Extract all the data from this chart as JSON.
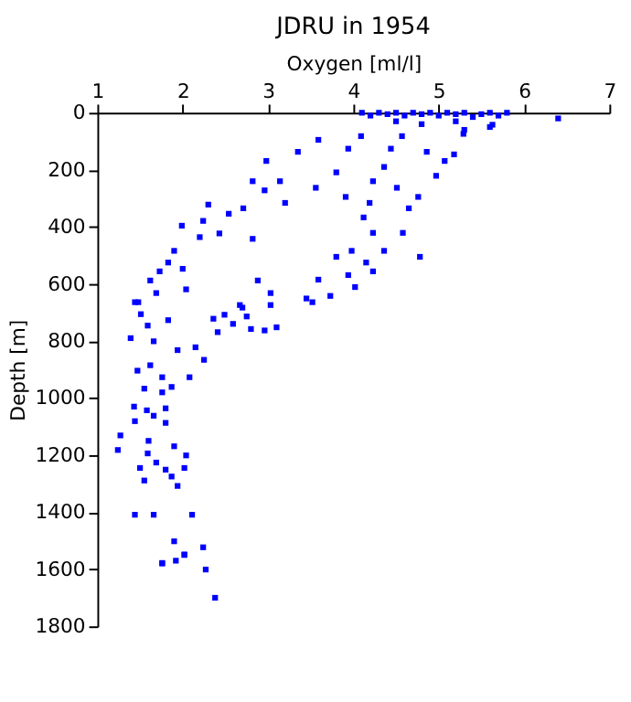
{
  "chart_data": {
    "type": "scatter",
    "title": "JDRU in 1954",
    "xlabel": "Oxygen [ml/l]",
    "ylabel": "Depth [m]",
    "xlim": [
      1,
      7
    ],
    "xticks": [
      1,
      2,
      3,
      4,
      5,
      6,
      7
    ],
    "ylim": [
      1800,
      0
    ],
    "yticks": [
      0,
      200,
      400,
      600,
      800,
      1000,
      1200,
      1400,
      1600,
      1800
    ],
    "grid": false,
    "marker": "square",
    "series": [
      {
        "color": "#0000ff",
        "x": [
          4.1,
          4.2,
          4.3,
          4.4,
          4.5,
          4.6,
          4.7,
          4.8,
          4.9,
          5.0,
          5.1,
          5.2,
          5.3,
          5.4,
          5.5,
          5.6,
          5.7,
          5.8,
          6.4,
          4.5,
          4.8,
          5.2,
          5.6,
          5.3,
          3.59,
          3.35,
          2.98,
          2.82,
          2.96,
          3.14,
          3.2,
          2.3,
          2.54,
          2.71,
          1.99,
          2.24,
          2.43,
          2.2,
          2.82,
          1.9,
          1.83,
          2.0,
          1.73,
          1.62,
          1.69,
          1.48,
          2.04,
          2.88,
          3.03,
          2.67,
          3.45,
          3.73,
          3.59,
          3.8,
          3.98,
          4.15,
          4.23,
          4.12,
          4.19,
          4.23,
          4.36,
          4.51,
          4.65,
          4.58,
          4.76,
          4.97,
          5.07,
          5.18,
          4.86,
          4.44,
          3.94,
          3.8,
          3.56,
          3.91,
          4.09,
          4.57,
          5.29,
          5.63,
          4.36,
          4.78,
          3.94,
          4.23,
          4.02,
          1.44,
          1.51,
          1.59,
          1.83,
          1.39,
          1.66,
          1.94,
          2.15,
          2.25,
          1.62,
          1.47,
          1.76,
          2.08,
          1.87,
          1.55,
          1.76,
          1.43,
          1.58,
          1.8,
          1.66,
          1.44,
          1.8,
          1.27,
          1.6,
          1.9,
          1.24,
          1.59,
          2.04,
          1.69,
          1.5,
          1.8,
          2.02,
          1.87,
          1.55,
          1.94,
          1.44,
          1.66,
          2.11,
          1.9,
          2.24,
          2.02,
          1.76,
          2.36,
          2.49,
          2.7,
          2.75,
          2.59,
          2.8,
          2.96,
          3.1,
          2.41,
          3.03,
          3.52,
          1.76,
          1.92,
          2.02,
          2.27,
          2.38
        ],
        "values": [
          0,
          10,
          0,
          5,
          0,
          10,
          0,
          5,
          0,
          10,
          0,
          5,
          0,
          15,
          5,
          0,
          10,
          0,
          20,
          30,
          40,
          30,
          50,
          60,
          95,
          137,
          169,
          240,
          272,
          240,
          316,
          322,
          354,
          335,
          396,
          379,
          423,
          436,
          442,
          484,
          525,
          547,
          556,
          588,
          632,
          664,
          619,
          588,
          632,
          674,
          651,
          642,
          585,
          505,
          484,
          525,
          421,
          367,
          316,
          240,
          190,
          263,
          335,
          421,
          295,
          221,
          169,
          146,
          137,
          126,
          126,
          209,
          263,
          295,
          82,
          82,
          74,
          42,
          484,
          505,
          569,
          556,
          611,
          664,
          706,
          746,
          727,
          790,
          801,
          832,
          822,
          866,
          885,
          904,
          927,
          927,
          961,
          967,
          980,
          1030,
          1043,
          1036,
          1062,
          1081,
          1087,
          1131,
          1150,
          1169,
          1182,
          1194,
          1201,
          1226,
          1245,
          1251,
          1245,
          1275,
          1289,
          1308,
          1409,
          1409,
          1409,
          1502,
          1523,
          1548,
          1578,
          722,
          708,
          683,
          714,
          740,
          758,
          763,
          752,
          769,
          674,
          664,
          1580,
          1570,
          1550,
          1601,
          1700
        ]
      }
    ]
  }
}
